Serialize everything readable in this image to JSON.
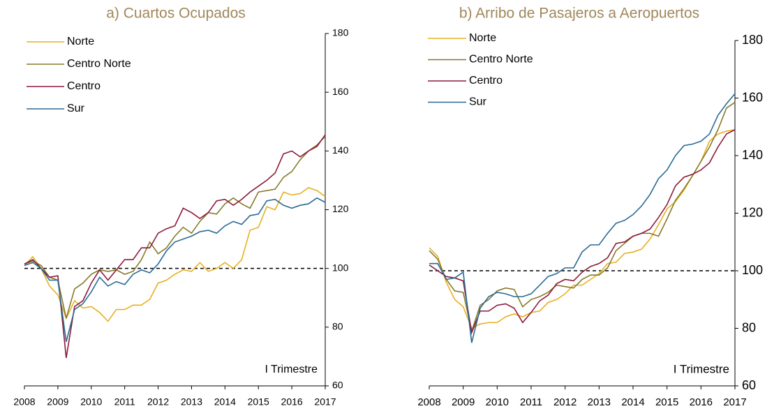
{
  "chart_data": [
    {
      "type": "line",
      "title": "a) Cuartos Ocupados",
      "categories": [
        "2008",
        null,
        null,
        null,
        "2009",
        null,
        null,
        null,
        "2010",
        null,
        null,
        null,
        "2011",
        null,
        null,
        null,
        "2012",
        null,
        null,
        null,
        "2013",
        null,
        null,
        null,
        "2014",
        null,
        null,
        null,
        "2015",
        null,
        null,
        null,
        "2016",
        null,
        null,
        null,
        "2017"
      ],
      "series": [
        {
          "name": "Norte",
          "color": "#E8B020",
          "values": [
            101,
            104,
            100,
            94,
            91,
            83,
            89,
            86.5,
            87,
            85,
            82,
            86,
            86,
            87.5,
            87.5,
            89.5,
            95,
            96,
            98,
            99.5,
            99,
            102,
            99,
            100,
            102,
            100,
            103,
            113,
            114,
            121,
            120,
            126,
            125,
            125.5,
            127.5,
            126.5,
            124.5
          ]
        },
        {
          "name": "Centro Norte",
          "color": "#857A2B",
          "values": [
            101.5,
            102.5,
            101,
            97,
            96,
            83,
            93,
            95,
            98,
            99.5,
            99,
            99.5,
            98,
            99,
            103,
            109,
            105,
            107,
            111,
            114,
            112,
            116,
            119,
            118.5,
            122,
            124,
            122,
            120.5,
            126,
            126.5,
            127,
            131,
            133,
            137,
            140,
            142,
            145
          ]
        },
        {
          "name": "Centro",
          "color": "#8B1A3A",
          "values": [
            101.5,
            103,
            100,
            97,
            97.5,
            69.5,
            87,
            89,
            95,
            99.5,
            96,
            99.5,
            103,
            103,
            107,
            107,
            112,
            113.5,
            114.5,
            120.5,
            119,
            117,
            119,
            123,
            123.5,
            121.5,
            123.5,
            126,
            128,
            130,
            132.5,
            139,
            140,
            138,
            140,
            141.5,
            145.5
          ]
        },
        {
          "name": "Sur",
          "color": "#2A6A96",
          "values": [
            101,
            102,
            100,
            96,
            96,
            75,
            86,
            88,
            92,
            97,
            94,
            95.5,
            94.5,
            98,
            99.5,
            98.5,
            101.5,
            106,
            109,
            110,
            111,
            112.5,
            113,
            112,
            114.5,
            116,
            115,
            118,
            118.5,
            123,
            123.5,
            121.5,
            120.5,
            121.5,
            122,
            124,
            122.5
          ]
        }
      ],
      "ylim": [
        60,
        180
      ],
      "yticks": [
        60,
        80,
        100,
        120,
        140,
        160,
        180
      ],
      "refline": 100,
      "annotation": "I Trimestre",
      "legend": "top-left"
    },
    {
      "type": "line",
      "title": "b) Arribo de Pasajeros a Aeropuertos",
      "categories": [
        "2008",
        null,
        null,
        null,
        "2009",
        null,
        null,
        null,
        "2010",
        null,
        null,
        null,
        "2011",
        null,
        null,
        null,
        "2012",
        null,
        null,
        null,
        "2013",
        null,
        null,
        null,
        "2014",
        null,
        null,
        null,
        "2015",
        null,
        null,
        null,
        "2016",
        null,
        null,
        null,
        "2017"
      ],
      "series": [
        {
          "name": "Norte",
          "color": "#E8B020",
          "values": [
            108,
            105,
            96,
            90,
            87.5,
            80,
            81.5,
            82,
            82,
            84,
            85,
            84,
            85.5,
            86,
            89,
            90,
            92,
            95,
            95,
            97,
            99,
            102.5,
            103,
            106,
            106.5,
            107.5,
            111,
            116,
            121.5,
            124,
            128,
            133,
            138,
            145,
            147.5,
            148.5,
            149
          ]
        },
        {
          "name": "Centro Norte",
          "color": "#857A2B",
          "values": [
            107,
            104,
            97,
            93,
            92.5,
            79,
            88,
            90,
            93,
            94,
            93.5,
            87.5,
            90,
            91,
            92.5,
            95,
            94.5,
            94,
            97,
            98.5,
            98.5,
            101,
            107,
            109.5,
            112,
            113,
            113,
            112,
            118,
            124.5,
            128.5,
            133,
            138,
            143,
            149,
            156.5,
            158.5
          ]
        },
        {
          "name": "Centro",
          "color": "#8B1A3A",
          "values": [
            102,
            100,
            98,
            97.5,
            96.5,
            78.5,
            86,
            86,
            88,
            88.5,
            87,
            82,
            85.5,
            89.5,
            91.5,
            95.5,
            97,
            96.5,
            99.5,
            101.5,
            102.5,
            104.5,
            109.5,
            110,
            112,
            113,
            114.5,
            118.5,
            123,
            129.5,
            132.5,
            133.5,
            135,
            137.5,
            143,
            147.5,
            149
          ]
        },
        {
          "name": "Sur",
          "color": "#2A6A96",
          "values": [
            102.5,
            102.5,
            97,
            97.5,
            99.5,
            75,
            87,
            91,
            92.5,
            92,
            91,
            91,
            92,
            95,
            98,
            99,
            101,
            101,
            106.5,
            109,
            109,
            113,
            116.5,
            117.5,
            119.5,
            122.5,
            126.5,
            132,
            135,
            140,
            143.5,
            144,
            145,
            147.5,
            154,
            158,
            161.5
          ]
        }
      ],
      "ylim": [
        60,
        180
      ],
      "yticks": [
        60,
        80,
        100,
        120,
        140,
        160,
        180
      ],
      "refline": 100,
      "annotation": "I Trimestre",
      "legend": "top-left"
    }
  ]
}
